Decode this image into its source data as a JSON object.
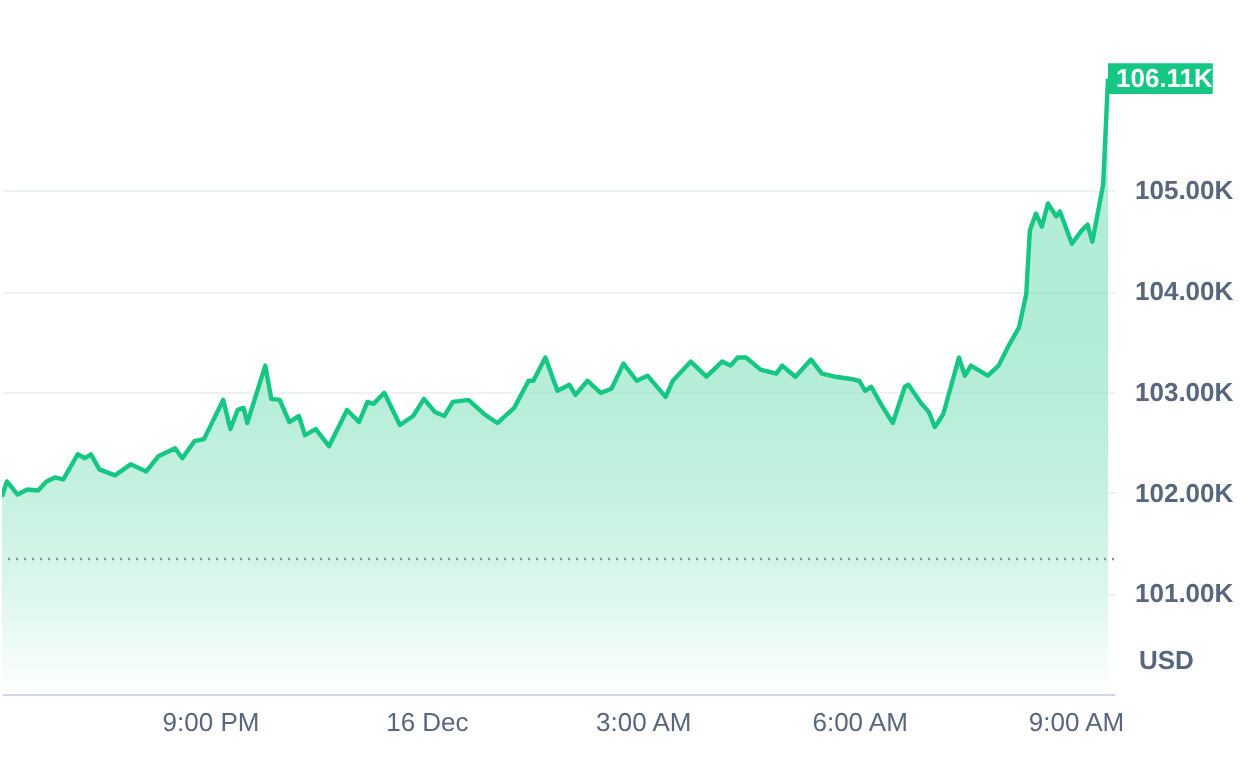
{
  "chart_data": {
    "type": "area",
    "ylabel": "USD",
    "x": [
      "--12-15T18:07",
      "--12-15T18:11",
      "--12-15T18:20",
      "--12-15T18:28",
      "--12-15T18:37",
      "--12-15T18:44",
      "--12-15T18:51",
      "--12-15T18:58",
      "--12-15T19:10",
      "--12-15T19:16",
      "--12-15T19:21",
      "--12-15T19:28",
      "--12-15T19:41",
      "--12-15T19:54",
      "--12-15T20:07",
      "--12-15T20:17",
      "--12-15T20:31",
      "--12-15T20:37",
      "--12-15T20:47",
      "--12-15T20:55",
      "--12-15T21:11",
      "--12-15T21:17",
      "--12-15T21:23",
      "--12-15T21:28",
      "--12-15T21:31",
      "--12-15T21:46",
      "--12-15T21:51",
      "--12-15T21:58",
      "--12-15T22:06",
      "--12-15T22:14",
      "--12-15T22:19",
      "--12-15T22:28",
      "--12-15T22:39",
      "--12-15T22:54",
      "--12-15T23:04",
      "--12-15T23:11",
      "--12-15T23:16",
      "--12-15T23:25",
      "--12-15T23:38",
      "--12-15T23:49",
      "--12-15T23:58",
      "--12-16T00:07",
      "--12-16T00:15",
      "--12-16T00:22",
      "--12-16T00:35",
      "--12-16T00:48",
      "--12-16T00:59",
      "--12-16T01:13",
      "--12-16T01:25",
      "--12-16T01:29",
      "--12-16T01:39",
      "--12-16T01:49",
      "--12-16T01:59",
      "--12-16T02:04",
      "--12-16T02:14",
      "--12-16T02:25",
      "--12-16T02:34",
      "--12-16T02:44",
      "--12-16T02:55",
      "--12-16T03:04",
      "--12-16T03:19",
      "--12-16T03:25",
      "--12-16T03:40",
      "--12-16T03:53",
      "--12-16T04:06",
      "--12-16T04:13",
      "--12-16T04:19",
      "--12-16T04:26",
      "--12-16T04:38",
      "--12-16T04:51",
      "--12-16T04:56",
      "--12-16T05:07",
      "--12-16T05:20",
      "--12-16T05:29",
      "--12-16T05:40",
      "--12-16T05:52",
      "--12-16T06:00",
      "--12-16T06:05",
      "--12-16T06:10",
      "--12-16T06:19",
      "--12-16T06:28",
      "--12-16T06:38",
      "--12-16T06:41",
      "--12-16T06:52",
      "--12-16T06:58",
      "--12-16T07:03",
      "--12-16T07:10",
      "--12-16T07:23",
      "--12-16T07:28",
      "--12-16T07:33",
      "--12-16T07:47",
      "--12-16T07:56",
      "--12-16T08:04",
      "--12-16T08:13",
      "--12-16T08:19",
      "--12-16T08:22",
      "--12-16T08:27",
      "--12-16T08:32",
      "--12-16T08:37",
      "--12-16T08:44",
      "--12-16T08:47",
      "--12-16T08:57",
      "--12-16T09:05",
      "--12-16T09:10",
      "--12-16T09:14",
      "--12-16T09:20",
      "--12-16T09:23",
      "--12-16T09:27"
    ],
    "series": [
      {
        "color": "#16c784",
        "values": [
          101.96,
          102.11,
          101.98,
          102.03,
          102.02,
          102.11,
          102.15,
          102.13,
          102.38,
          102.34,
          102.38,
          102.23,
          102.17,
          102.28,
          102.21,
          102.36,
          102.44,
          102.34,
          102.51,
          102.53,
          102.92,
          102.63,
          102.82,
          102.84,
          102.69,
          103.26,
          102.93,
          102.92,
          102.7,
          102.76,
          102.57,
          102.63,
          102.46,
          102.82,
          102.7,
          102.9,
          102.88,
          102.99,
          102.67,
          102.76,
          102.93,
          102.8,
          102.76,
          102.9,
          102.92,
          102.78,
          102.69,
          102.84,
          103.11,
          103.11,
          103.34,
          103.01,
          103.07,
          102.97,
          103.11,
          102.99,
          103.03,
          103.28,
          103.11,
          103.16,
          102.95,
          103.11,
          103.3,
          103.15,
          103.3,
          103.26,
          103.34,
          103.34,
          103.22,
          103.18,
          103.26,
          103.15,
          103.32,
          103.18,
          103.15,
          103.13,
          103.11,
          103.01,
          103.05,
          102.86,
          102.69,
          103.05,
          103.07,
          102.88,
          102.8,
          102.65,
          102.78,
          103.34,
          103.16,
          103.26,
          103.16,
          103.26,
          103.45,
          103.64,
          103.97,
          104.6,
          104.77,
          104.64,
          104.87,
          104.74,
          104.79,
          104.47,
          104.6,
          104.66,
          104.49,
          104.87,
          105.06,
          106.11
        ]
      }
    ],
    "xlim": [
      "--12-15T18:07",
      "--12-16T09:32"
    ],
    "xticks": [
      {
        "value": "--12-15T21:00",
        "label": "9:00 PM"
      },
      {
        "value": "--12-16T00:00",
        "label": "16 Dec"
      },
      {
        "value": "--12-16T03:00",
        "label": "3:00 AM"
      },
      {
        "value": "--12-16T06:00",
        "label": "6:00 AM"
      },
      {
        "value": "--12-16T09:00",
        "label": "9:00 AM"
      }
    ],
    "ylim": [
      100,
      106.85
    ],
    "yticks": [
      {
        "value": 101,
        "label": "101.00K"
      },
      {
        "value": 102,
        "label": "102.00K"
      },
      {
        "value": 103,
        "label": "103.00K"
      },
      {
        "value": 104,
        "label": "104.00K"
      },
      {
        "value": 105,
        "label": "105.00K"
      }
    ],
    "grid": "y",
    "marker": "none",
    "line_style": "solid",
    "ref_lines": [
      {
        "axis": "y",
        "value": 101.34,
        "color": "#8a8f99",
        "line_style": "dotted"
      }
    ],
    "annotations": [
      {
        "text": "106.11K",
        "x": "--12-16T09:27",
        "y": 106.11
      }
    ]
  }
}
